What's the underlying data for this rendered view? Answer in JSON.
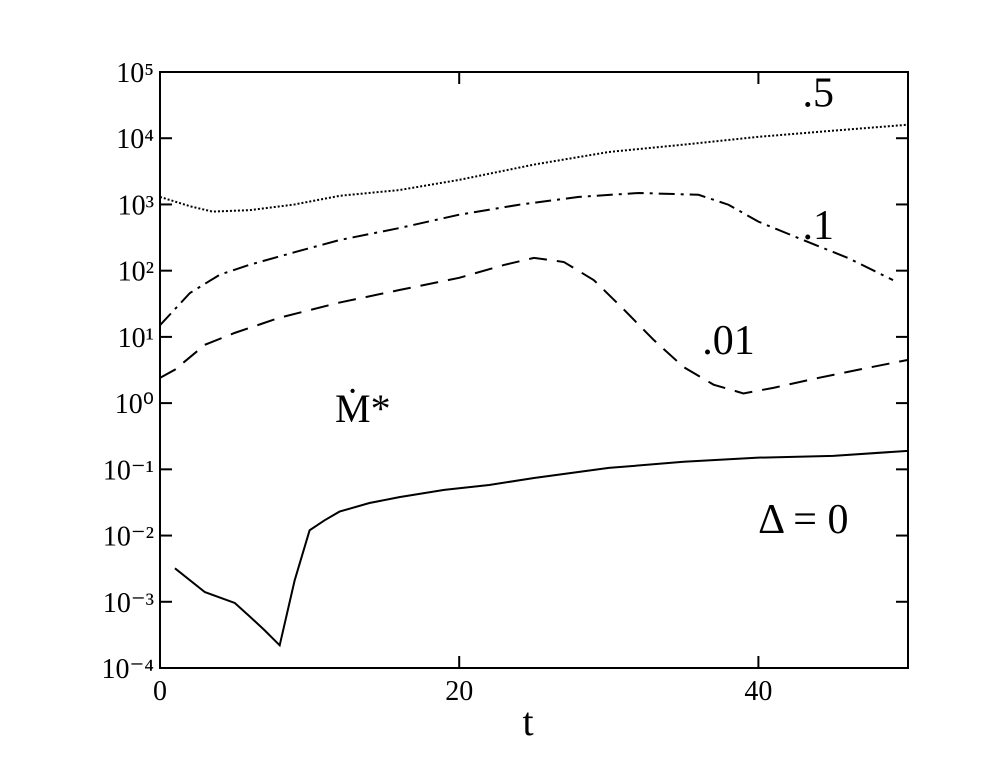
{
  "chart_data": {
    "type": "line",
    "xlabel": "t",
    "ylabel": "Ṁ*",
    "xlim": [
      0,
      50
    ],
    "xticks": [
      0,
      20,
      40
    ],
    "ylim": [
      0.0001,
      100000
    ],
    "log_y": true,
    "yticks": [
      {
        "value": 0.0001,
        "label": "10⁻⁴"
      },
      {
        "value": 0.001,
        "label": "10⁻³"
      },
      {
        "value": 0.01,
        "label": "10⁻²"
      },
      {
        "value": 0.1,
        "label": "10⁻¹"
      },
      {
        "value": 1,
        "label": "10⁰"
      },
      {
        "value": 10,
        "label": "10¹"
      },
      {
        "value": 100,
        "label": "10²"
      },
      {
        "value": 1000,
        "label": "10³"
      },
      {
        "value": 10000,
        "label": "10⁴"
      },
      {
        "value": 100000,
        "label": "10⁵"
      }
    ],
    "grid": false,
    "series": [
      {
        "name": "Δ = 0",
        "color": "#000000",
        "style": "solid",
        "x": [
          1,
          3,
          5,
          6,
          7,
          8,
          9,
          10,
          11,
          12,
          14,
          16,
          19,
          22,
          25,
          30,
          35,
          40,
          45,
          50
        ],
        "values": [
          0.0032,
          0.0014,
          0.00096,
          0.0006,
          0.00037,
          0.00022,
          0.0021,
          0.012,
          0.017,
          0.023,
          0.031,
          0.038,
          0.049,
          0.058,
          0.074,
          0.105,
          0.13,
          0.15,
          0.16,
          0.19
        ]
      },
      {
        "name": ".01",
        "color": "#000000",
        "style": "dashed",
        "x": [
          0,
          1,
          3,
          5,
          8,
          12,
          16,
          20,
          23,
          25,
          27,
          29,
          31,
          33,
          35,
          37,
          39,
          41,
          44,
          47,
          50
        ],
        "values": [
          2.4,
          3.2,
          7.6,
          11.5,
          19.5,
          33,
          51,
          78,
          122,
          156,
          135,
          72,
          26,
          9,
          3.5,
          1.9,
          1.4,
          1.7,
          2.4,
          3.3,
          4.5
        ]
      },
      {
        "name": ".1",
        "color": "#000000",
        "style": "dashdot",
        "x": [
          0,
          2,
          4,
          6,
          9,
          12,
          16,
          20,
          24,
          28,
          32,
          36,
          38,
          40,
          43,
          46,
          49
        ],
        "values": [
          15,
          46,
          87,
          123,
          190,
          290,
          440,
          700,
          990,
          1300,
          1490,
          1400,
          990,
          550,
          290,
          155,
          72
        ]
      },
      {
        "name": ".5",
        "color": "#000000",
        "style": "dotted",
        "x": [
          0,
          2,
          3.5,
          6,
          9,
          12,
          16,
          20,
          25,
          30,
          35,
          40,
          45,
          50
        ],
        "values": [
          1300,
          940,
          780,
          820,
          1000,
          1350,
          1650,
          2350,
          4000,
          6200,
          8000,
          10500,
          13000,
          16000
        ]
      }
    ]
  }
}
